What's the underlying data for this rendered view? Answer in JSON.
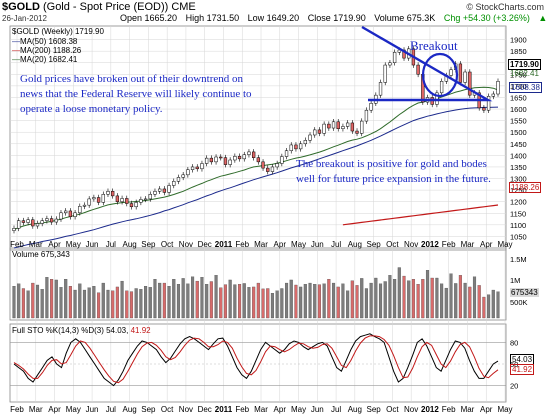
{
  "header": {
    "symbol": "$GOLD",
    "subtitle": "(Gold - Spot Price (EOD)) CME",
    "brand": "© StockCharts.com",
    "date": "26-Jan-2012",
    "ohlc": {
      "open": "Open 1665.20",
      "high": "High 1731.50",
      "low": "Low 1649.20",
      "close": "Close 1719.90",
      "volume": "Volume 675.3K",
      "chg": "Chg +54.30 (+3.26%)",
      "chg_arrow": "▲"
    }
  },
  "legend": {
    "price": "$GOLD (Weekly) 1719.90",
    "ma50": "MA(50) 1608.38",
    "ma200": "MA(200) 1188.26",
    "ma20": "MA(20) 1682.41",
    "volume": "Volume 675,343",
    "sto_prefix": "Full STO %K(14,3) %D(3) ",
    "sto_k": "54.03",
    "sto_d": "41.92"
  },
  "annotations": {
    "left": "Gold prices have broken out of their downtrend on news that the Federal Reserve will likely continue to operate a loose monetary policy.",
    "right": "The breakout is positive for gold and bodes well for future price expansion in the future.",
    "breakout": "Breakout"
  },
  "price_labels": {
    "last": "1719.90",
    "ma20": "1682.41",
    "ma50": "1608.38",
    "ma200": "1188.26"
  },
  "volume_labels": {
    "last": "675343"
  },
  "sto_labels": {
    "k": "54.03",
    "d": "41.92"
  },
  "colors": {
    "up": "#ffffff",
    "down": "#e06666",
    "ma50": "#1c2a8c",
    "ma200": "#c21818",
    "ma20": "#2f6b2a",
    "annotation": "#1b28c4",
    "vol_up": "#7d7d7d",
    "vol_down": "#d76b6b",
    "k": "#000000",
    "d": "#c21818",
    "grid": "#d6d6d6",
    "chg": "#009000"
  },
  "chart_data": [
    {
      "type": "candlestick",
      "title": "$GOLD (Weekly) 1719.90",
      "ylim": [
        1000,
        1950
      ],
      "x_labels": [
        "Feb",
        "Mar",
        "Apr",
        "May",
        "Jun",
        "Jul",
        "Aug",
        "Sep",
        "Oct",
        "Nov",
        "Dec",
        "2011",
        "Feb",
        "Mar",
        "Apr",
        "May",
        "Jun",
        "Jul",
        "Aug",
        "Sep",
        "Oct",
        "Nov",
        "2012",
        "Feb",
        "Mar",
        "Apr",
        "May"
      ],
      "y_ticks": [
        1050,
        1100,
        1150,
        1200,
        1250,
        1300,
        1350,
        1400,
        1450,
        1500,
        1550,
        1600,
        1650,
        1700,
        1750,
        1800,
        1850,
        1900
      ],
      "close": [
        1085,
        1118,
        1110,
        1122,
        1095,
        1106,
        1118,
        1127,
        1112,
        1125,
        1152,
        1160,
        1135,
        1152,
        1180,
        1185,
        1212,
        1218,
        1197,
        1232,
        1245,
        1225,
        1200,
        1214,
        1192,
        1178,
        1197,
        1210,
        1212,
        1232,
        1245,
        1255,
        1240,
        1270,
        1288,
        1305,
        1316,
        1338,
        1350,
        1342,
        1365,
        1388,
        1372,
        1393,
        1390,
        1360,
        1380,
        1396,
        1385,
        1403,
        1415,
        1390,
        1372,
        1345,
        1330,
        1350,
        1365,
        1395,
        1420,
        1445,
        1428,
        1450,
        1465,
        1488,
        1510,
        1495,
        1535,
        1518,
        1545,
        1515,
        1525,
        1540,
        1505,
        1495,
        1548,
        1595,
        1625,
        1660,
        1715,
        1790,
        1800,
        1845,
        1855,
        1820,
        1860,
        1790,
        1750,
        1630,
        1650,
        1620,
        1670,
        1720,
        1745,
        1770,
        1795,
        1715,
        1760,
        1660,
        1670,
        1605,
        1595,
        1655,
        1665,
        1719.9
      ],
      "ma20": [
        1080,
        1088,
        1095,
        1100,
        1104,
        1106,
        1108,
        1112,
        1115,
        1119,
        1125,
        1131,
        1136,
        1141,
        1146,
        1153,
        1160,
        1167,
        1173,
        1180,
        1186,
        1190,
        1193,
        1196,
        1198,
        1199,
        1201,
        1203,
        1205,
        1208,
        1212,
        1216,
        1220,
        1225,
        1231,
        1238,
        1245,
        1254,
        1263,
        1271,
        1279,
        1288,
        1295,
        1303,
        1310,
        1315,
        1320,
        1325,
        1331,
        1337,
        1344,
        1350,
        1353,
        1356,
        1359,
        1362,
        1366,
        1371,
        1377,
        1383,
        1388,
        1392,
        1397,
        1402,
        1408,
        1414,
        1421,
        1429,
        1437,
        1444,
        1452,
        1460,
        1466,
        1470,
        1476,
        1484,
        1493,
        1503,
        1515,
        1530,
        1544,
        1560,
        1576,
        1590,
        1604,
        1616,
        1626,
        1630,
        1635,
        1639,
        1645,
        1652,
        1659,
        1666,
        1673,
        1678,
        1684,
        1688,
        1692,
        1693,
        1694,
        1693,
        1690,
        1682.41
      ],
      "ma50": [
        1000,
        1005,
        1010,
        1015,
        1019,
        1023,
        1028,
        1032,
        1036,
        1040,
        1045,
        1050,
        1054,
        1059,
        1064,
        1069,
        1074,
        1079,
        1085,
        1091,
        1097,
        1103,
        1108,
        1113,
        1118,
        1122,
        1126,
        1131,
        1136,
        1141,
        1147,
        1153,
        1160,
        1166,
        1173,
        1180,
        1187,
        1195,
        1202,
        1209,
        1217,
        1225,
        1232,
        1240,
        1247,
        1254,
        1260,
        1267,
        1274,
        1281,
        1288,
        1295,
        1301,
        1307,
        1313,
        1319,
        1325,
        1332,
        1339,
        1346,
        1352,
        1358,
        1364,
        1371,
        1378,
        1385,
        1392,
        1399,
        1406,
        1413,
        1420,
        1427,
        1434,
        1441,
        1449,
        1457,
        1465,
        1474,
        1483,
        1493,
        1503,
        1513,
        1523,
        1532,
        1541,
        1550,
        1557,
        1563,
        1569,
        1574,
        1579,
        1584,
        1588,
        1592,
        1596,
        1599,
        1602,
        1604,
        1605,
        1606,
        1607,
        1607,
        1608,
        1608.38
      ]
    },
    {
      "type": "bar",
      "title": "Volume 675,343",
      "y_ticks": [
        "500K",
        "1M",
        "1.5M"
      ],
      "ylim": [
        0,
        1700000
      ],
      "values": [
        820000,
        880000,
        760000,
        700000,
        900000,
        850000,
        740000,
        1050000,
        1000000,
        980000,
        790000,
        1000000,
        820000,
        720000,
        880000,
        720000,
        780000,
        820000,
        650000,
        900000,
        720000,
        700000,
        800000,
        950000,
        700000,
        680000,
        760000,
        740000,
        820000,
        790000,
        1000000,
        900000,
        900000,
        820000,
        1000000,
        870000,
        1020000,
        880000,
        1060000,
        950000,
        1050000,
        870000,
        940000,
        1100000,
        780000,
        860000,
        980000,
        860000,
        870000,
        890000,
        790000,
        800000,
        900000,
        750000,
        760000,
        640000,
        700000,
        760000,
        900000,
        980000,
        850000,
        800000,
        870000,
        900000,
        870000,
        860000,
        880000,
        1000000,
        900000,
        800000,
        880000,
        700000,
        960000,
        840000,
        1020000,
        760000,
        900000,
        1030000,
        880000,
        940000,
        1100000,
        1000000,
        1300000,
        1080000,
        960000,
        1000000,
        870000,
        1000000,
        1230000,
        1030000,
        1030000,
        880000,
        770000,
        1140000,
        890000,
        1100000,
        900000,
        800000,
        1060000,
        840000,
        540000,
        600000,
        720000,
        675343
      ]
    },
    {
      "type": "line",
      "title": "Full STO %K(14,3) %D(3) 54.03, 41.92",
      "ylim": [
        0,
        100
      ],
      "y_ticks": [
        20,
        50,
        80
      ],
      "series": [
        {
          "name": "%K",
          "values": [
            50,
            45,
            40,
            30,
            25,
            35,
            45,
            55,
            60,
            50,
            45,
            65,
            80,
            85,
            80,
            70,
            60,
            50,
            40,
            30,
            25,
            20,
            28,
            40,
            55,
            65,
            75,
            82,
            80,
            75,
            70,
            60,
            52,
            58,
            68,
            78,
            85,
            88,
            85,
            80,
            75,
            70,
            78,
            85,
            86,
            75,
            60,
            45,
            35,
            30,
            40,
            55,
            70,
            80,
            75,
            70,
            65,
            70,
            78,
            82,
            80,
            74,
            70,
            74,
            78,
            80,
            75,
            60,
            45,
            40,
            55,
            70,
            82,
            88,
            90,
            92,
            88,
            85,
            80,
            60,
            40,
            25,
            30,
            45,
            62,
            80,
            85,
            75,
            60,
            45,
            40,
            55,
            70,
            82,
            80,
            72,
            55,
            40,
            30,
            30,
            40,
            50,
            54.03
          ]
        },
        {
          "name": "%D",
          "values": [
            52,
            48,
            43,
            36,
            30,
            30,
            38,
            48,
            55,
            56,
            50,
            52,
            63,
            75,
            82,
            80,
            72,
            62,
            52,
            42,
            33,
            26,
            24,
            29,
            40,
            52,
            64,
            74,
            79,
            80,
            76,
            69,
            60,
            56,
            59,
            67,
            76,
            83,
            86,
            85,
            80,
            74,
            74,
            77,
            82,
            80,
            72,
            58,
            46,
            37,
            35,
            41,
            53,
            67,
            75,
            74,
            70,
            67,
            70,
            75,
            79,
            78,
            74,
            72,
            73,
            77,
            78,
            72,
            60,
            48,
            45,
            55,
            68,
            79,
            86,
            89,
            89,
            88,
            84,
            76,
            62,
            45,
            31,
            32,
            44,
            60,
            74,
            80,
            76,
            63,
            50,
            45,
            54,
            67,
            77,
            80,
            74,
            60,
            44,
            33,
            31,
            37,
            41.92
          ]
        }
      ]
    }
  ]
}
